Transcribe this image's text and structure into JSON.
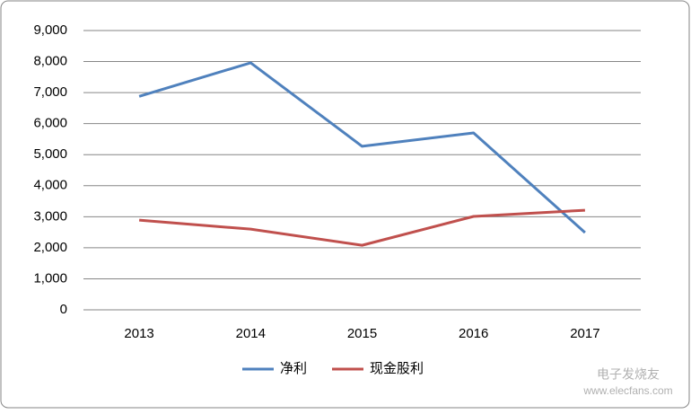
{
  "chart_data": {
    "type": "line",
    "categories": [
      "2013",
      "2014",
      "2015",
      "2016",
      "2017"
    ],
    "series": [
      {
        "name": "净利",
        "color": "#4f81bd",
        "values": [
          6880,
          7960,
          5270,
          5700,
          2490
        ]
      },
      {
        "name": "现金股利",
        "color": "#c0504d",
        "values": [
          2890,
          2600,
          2080,
          3010,
          3210
        ]
      }
    ],
    "ylim": [
      0,
      9000
    ],
    "yticks": [
      0,
      {
        "value": 1000,
        "label": "1,000"
      },
      {
        "value": 2000,
        "label": "2,000"
      },
      {
        "value": 3000,
        "label": "3,000"
      },
      {
        "value": 4000,
        "label": "4,000"
      },
      {
        "value": 5000,
        "label": "5,000"
      },
      {
        "value": 6000,
        "label": "6,000"
      },
      {
        "value": 7000,
        "label": "7,000"
      },
      {
        "value": 8000,
        "label": "8,000"
      },
      {
        "value": 9000,
        "label": "9,000"
      }
    ],
    "grid": true,
    "legend": "bottom",
    "watermark": [
      "电子发烧友",
      "www.elecfans.com"
    ]
  }
}
